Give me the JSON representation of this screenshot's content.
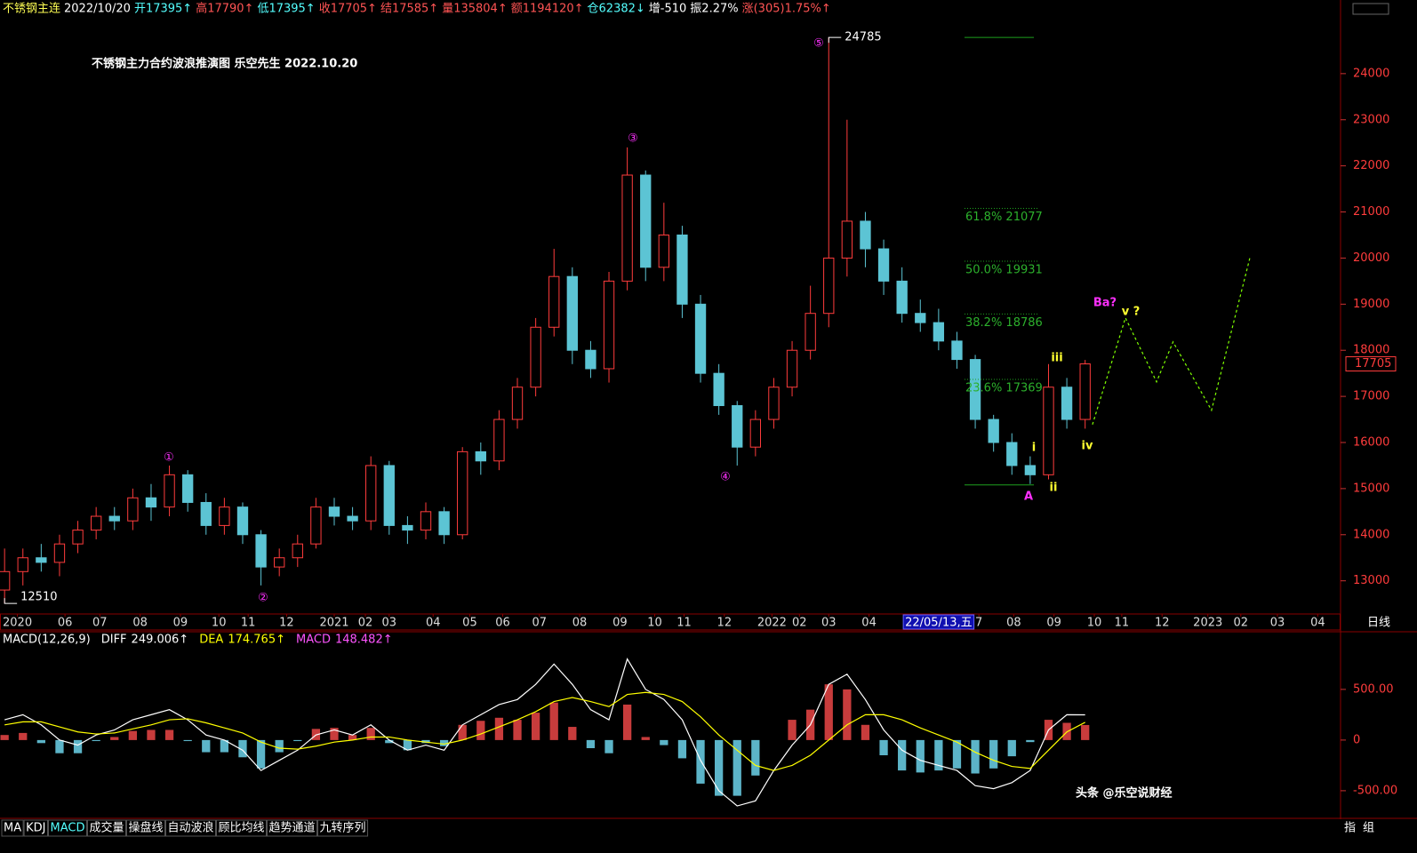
{
  "header": {
    "items": [
      {
        "text": "不锈钢主连",
        "color": "#ffff54"
      },
      {
        "text": "2022/10/20",
        "color": "#ffffff"
      },
      {
        "text": "开17395↑",
        "color": "#54ffff"
      },
      {
        "text": "高17790↑",
        "color": "#ff5454"
      },
      {
        "text": "低17395↑",
        "color": "#54ffff"
      },
      {
        "text": "收17705↑",
        "color": "#ff5454"
      },
      {
        "text": "结17585↑",
        "color": "#ff5454"
      },
      {
        "text": "量135804↑",
        "color": "#ff5454"
      },
      {
        "text": "额1194120↑",
        "color": "#ff5454"
      },
      {
        "text": "仓62382↓",
        "color": "#54ffff"
      },
      {
        "text": "增-510",
        "color": "#ffffff"
      },
      {
        "text": "振2.27%",
        "color": "#ffffff"
      },
      {
        "text": "涨(305)1.75%↑",
        "color": "#ff5454"
      }
    ]
  },
  "chart_data": [
    {
      "type": "candlestick",
      "title": "不锈钢主力合约波浪推演图  乐空先生  2022.10.20",
      "up_color": "#ff3c3c",
      "down_color": "#5cc4d4",
      "open": [
        12800,
        13200,
        13500,
        13400,
        13800,
        14100,
        14400,
        14300,
        14800,
        14600,
        15300,
        14700,
        14200,
        14600,
        14000,
        13300,
        13500,
        13800,
        14600,
        14400,
        14300,
        15500,
        14200,
        14100,
        14500,
        14000,
        15800,
        15600,
        16500,
        17200,
        18500,
        19600,
        18000,
        17600,
        19500,
        21800,
        19800,
        20500,
        19000,
        17500,
        16800,
        15900,
        16500,
        17200,
        18000,
        18800,
        20000,
        20800,
        20200,
        19500,
        18800,
        18600,
        18200,
        17800,
        16500,
        16000,
        15500,
        15300,
        17200,
        16500
      ],
      "high": [
        13700,
        13700,
        13800,
        14000,
        14300,
        14600,
        14600,
        15000,
        15100,
        15500,
        15400,
        14900,
        14800,
        14700,
        14100,
        13700,
        14000,
        14800,
        14800,
        14600,
        15700,
        15600,
        14400,
        14700,
        14600,
        15900,
        16000,
        16700,
        17400,
        18700,
        20200,
        19800,
        18200,
        19700,
        22400,
        21900,
        21200,
        20700,
        19200,
        17700,
        16900,
        16700,
        17400,
        18200,
        19400,
        24785,
        23000,
        21000,
        20400,
        19800,
        19100,
        18900,
        18400,
        17900,
        16600,
        16200,
        15700,
        17700,
        17400,
        17790
      ],
      "low": [
        12510,
        12900,
        13200,
        13100,
        13600,
        13900,
        14100,
        14100,
        14300,
        14400,
        14500,
        14000,
        14000,
        13800,
        12900,
        13100,
        13300,
        13700,
        14200,
        14100,
        14100,
        14000,
        13800,
        13900,
        13800,
        13900,
        15300,
        15400,
        16300,
        17000,
        18300,
        17700,
        17400,
        17300,
        19300,
        19500,
        19500,
        18700,
        17300,
        16600,
        15500,
        15700,
        16300,
        17000,
        17800,
        18500,
        19600,
        19800,
        19200,
        18600,
        18400,
        18000,
        17600,
        16300,
        15800,
        15300,
        15100,
        15200,
        16300,
        16300
      ],
      "close": [
        13200,
        13500,
        13400,
        13800,
        14100,
        14400,
        14300,
        14800,
        14600,
        15300,
        14700,
        14200,
        14600,
        14000,
        13300,
        13500,
        13800,
        14600,
        14400,
        14300,
        15500,
        14200,
        14100,
        14500,
        14000,
        15800,
        15600,
        16500,
        17200,
        18500,
        19600,
        18000,
        17600,
        19500,
        21800,
        19800,
        20500,
        19000,
        17500,
        16800,
        15900,
        16500,
        17200,
        18000,
        18800,
        20000,
        20800,
        20200,
        19500,
        18800,
        18600,
        18200,
        17800,
        16500,
        16000,
        15500,
        15300,
        17200,
        16500,
        17705
      ],
      "xlim": [
        -0.25,
        72.8
      ],
      "xticks": [
        {
          "value": 0.7,
          "label": "2020"
        },
        {
          "value": 3.3,
          "label": "06"
        },
        {
          "value": 5.2,
          "label": "07"
        },
        {
          "value": 7.4,
          "label": "08"
        },
        {
          "value": 9.6,
          "label": "09"
        },
        {
          "value": 11.7,
          "label": "10"
        },
        {
          "value": 13.3,
          "label": "11"
        },
        {
          "value": 15.4,
          "label": "12"
        },
        {
          "value": 18.0,
          "label": "2021"
        },
        {
          "value": 19.7,
          "label": "02"
        },
        {
          "value": 21.0,
          "label": "03"
        },
        {
          "value": 23.4,
          "label": "04"
        },
        {
          "value": 25.4,
          "label": "05"
        },
        {
          "value": 27.2,
          "label": "06"
        },
        {
          "value": 29.2,
          "label": "07"
        },
        {
          "value": 31.4,
          "label": "08"
        },
        {
          "value": 33.6,
          "label": "09"
        },
        {
          "value": 35.5,
          "label": "10"
        },
        {
          "value": 37.1,
          "label": "11"
        },
        {
          "value": 39.3,
          "label": "12"
        },
        {
          "value": 41.9,
          "label": "2022"
        },
        {
          "value": 43.4,
          "label": "02"
        },
        {
          "value": 45.0,
          "label": "03"
        },
        {
          "value": 47.2,
          "label": "04"
        },
        {
          "value": 53.2,
          "label": "7"
        },
        {
          "value": 55.1,
          "label": "08"
        },
        {
          "value": 57.3,
          "label": "09"
        },
        {
          "value": 59.5,
          "label": "10"
        },
        {
          "value": 61.0,
          "label": "11"
        },
        {
          "value": 63.2,
          "label": "12"
        },
        {
          "value": 65.7,
          "label": "2023"
        },
        {
          "value": 67.5,
          "label": "02"
        },
        {
          "value": 69.5,
          "label": "03"
        },
        {
          "value": 71.7,
          "label": "04"
        }
      ],
      "cursor_label": {
        "value": 51.0,
        "label": "22/05/13,五"
      },
      "period": "日线",
      "ylim": [
        12300,
        25250
      ],
      "yticks": [
        13000,
        14000,
        15000,
        16000,
        17000,
        18000,
        19000,
        20000,
        21000,
        22000,
        23000,
        24000
      ],
      "last_price": 17705,
      "max_label": 24785,
      "min_label": 12510,
      "fib_range": [
        24785,
        15080
      ],
      "fib_levels": [
        {
          "value": 21077,
          "label": "61.8% 21077"
        },
        {
          "value": 19931,
          "label": "50.0% 19931"
        },
        {
          "value": 18786,
          "label": "38.2% 18786"
        },
        {
          "value": 17369,
          "label": "23.6% 17369"
        }
      ],
      "projection": {
        "color": "#7fff00",
        "x": [
          59.4,
          61.2,
          62.9,
          63.8,
          65.9,
          68.0
        ],
        "values": [
          16390,
          18702,
          17315,
          18182,
          16699,
          20012
        ]
      },
      "wave_labels": [
        "①",
        "②",
        "③",
        "④",
        "⑤"
      ],
      "sub_wave_labels": [
        "i",
        "ii",
        "iii",
        "iv",
        "v ?"
      ],
      "abc_labels": [
        "A",
        "Ba?"
      ]
    },
    {
      "type": "macd",
      "title": "MACD(12,26,9)",
      "ylim": [
        -720,
        1060
      ],
      "yticks": [
        {
          "value": 500,
          "label": "500.00"
        },
        0,
        {
          "value": -500,
          "label": "-500.00"
        }
      ],
      "series": [
        {
          "name": "DIFF",
          "color": "#ffffff",
          "legend_value": "249.006↑",
          "values": [
            200,
            250,
            150,
            0,
            -50,
            50,
            100,
            200,
            250,
            300,
            200,
            50,
            0,
            -100,
            -300,
            -200,
            -100,
            50,
            100,
            50,
            150,
            0,
            -100,
            -50,
            -100,
            150,
            250,
            350,
            400,
            550,
            750,
            550,
            300,
            200,
            800,
            500,
            400,
            200,
            -200,
            -500,
            -650,
            -600,
            -300,
            -50,
            150,
            550,
            650,
            400,
            100,
            -100,
            -200,
            -250,
            -300,
            -450,
            -480,
            -420,
            -300,
            100,
            250,
            249.006
          ]
        },
        {
          "name": "DEA",
          "color": "#ffff00",
          "legend_value": "174.765↑",
          "values": [
            150,
            180,
            180,
            130,
            80,
            60,
            70,
            110,
            150,
            200,
            210,
            170,
            120,
            70,
            -20,
            -80,
            -90,
            -60,
            -20,
            0,
            30,
            30,
            0,
            -20,
            -40,
            0,
            60,
            130,
            200,
            280,
            380,
            420,
            380,
            330,
            450,
            470,
            450,
            380,
            230,
            50,
            -100,
            -250,
            -300,
            -250,
            -150,
            0,
            150,
            250,
            250,
            200,
            120,
            50,
            -20,
            -120,
            -200,
            -260,
            -280,
            -100,
            80,
            174.765
          ]
        },
        {
          "name": "MACD",
          "color": "#ff54ff",
          "legend_value": "148.482↑",
          "up_color": "#c83c3c",
          "down_color": "#5cb4c8",
          "values": [
            50,
            70,
            -30,
            -130,
            -130,
            -10,
            30,
            90,
            100,
            100,
            -10,
            -120,
            -120,
            -170,
            -280,
            -120,
            -10,
            110,
            120,
            50,
            120,
            -30,
            -100,
            -30,
            -60,
            150,
            190,
            220,
            200,
            270,
            370,
            130,
            -80,
            -130,
            350,
            30,
            -50,
            -180,
            -430,
            -550,
            -550,
            -350,
            0,
            200,
            300,
            550,
            500,
            150,
            -150,
            -300,
            -320,
            -300,
            -280,
            -330,
            -280,
            -160,
            -20,
            200,
            170,
            148.482
          ]
        }
      ]
    }
  ],
  "tabs": [
    "MA",
    "KDJ",
    "MACD",
    "成交量",
    "操盘线",
    "自动波浪",
    "顾比均线",
    "趋势通道",
    "九转序列"
  ],
  "tabs_right": [
    "指",
    "组"
  ],
  "watermark": "头条 @乐空说财经"
}
